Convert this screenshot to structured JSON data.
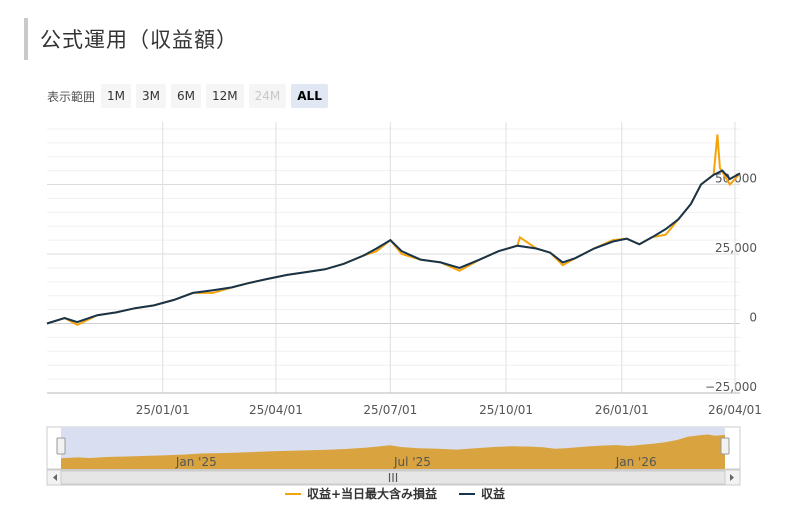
{
  "header": {
    "title": "公式運用（収益額）"
  },
  "range_selector": {
    "label": "表示範囲",
    "buttons": [
      {
        "label": "1M",
        "state": "normal"
      },
      {
        "label": "3M",
        "state": "normal"
      },
      {
        "label": "6M",
        "state": "normal"
      },
      {
        "label": "12M",
        "state": "normal"
      },
      {
        "label": "24M",
        "state": "disabled"
      },
      {
        "label": "ALL",
        "state": "active"
      }
    ]
  },
  "navigator": {
    "labels": [
      "Jan '25",
      "Jul '25",
      "Jan '26"
    ],
    "handle_glyph": "III"
  },
  "chart_data": {
    "type": "line",
    "y_ticks": [
      -25000,
      0,
      25000,
      50000
    ],
    "y_tick_labels": [
      "−25,000",
      "0",
      "25,000",
      "50,000"
    ],
    "x_tick_labels": [
      "25/01/01",
      "25/04/01",
      "25/07/01",
      "25/10/01",
      "26/01/01",
      "26/04/01"
    ],
    "x_range": [
      "2024-10-01",
      "2026-04-05"
    ],
    "y_range": [
      -25000,
      72500
    ],
    "grid": true,
    "legend_position": "bottom",
    "colors": {
      "income_plus_drawdown": "#f5a30a",
      "income": "#17344e",
      "navigator_fill": "#d9a33f",
      "navigator_bg": "#d9dff0"
    },
    "series": [
      {
        "name": "収益",
        "points": [
          [
            "2024-10-01",
            0
          ],
          [
            "2024-10-15",
            2000
          ],
          [
            "2024-10-25",
            500
          ],
          [
            "2024-11-10",
            3000
          ],
          [
            "2024-11-25",
            4000
          ],
          [
            "2024-12-10",
            5500
          ],
          [
            "2024-12-25",
            6500
          ],
          [
            "2025-01-10",
            8500
          ],
          [
            "2025-01-25",
            11000
          ],
          [
            "2025-02-10",
            12000
          ],
          [
            "2025-02-25",
            13000
          ],
          [
            "2025-03-10",
            14500
          ],
          [
            "2025-03-25",
            16000
          ],
          [
            "2025-04-10",
            17500
          ],
          [
            "2025-04-25",
            18500
          ],
          [
            "2025-05-10",
            19500
          ],
          [
            "2025-05-25",
            21500
          ],
          [
            "2025-06-10",
            24500
          ],
          [
            "2025-06-20",
            27000
          ],
          [
            "2025-07-01",
            30000
          ],
          [
            "2025-07-10",
            26000
          ],
          [
            "2025-07-25",
            23000
          ],
          [
            "2025-08-10",
            22000
          ],
          [
            "2025-08-25",
            20000
          ],
          [
            "2025-09-10",
            23000
          ],
          [
            "2025-09-25",
            26000
          ],
          [
            "2025-10-10",
            28000
          ],
          [
            "2025-10-25",
            27000
          ],
          [
            "2025-11-05",
            25500
          ],
          [
            "2025-11-15",
            22000
          ],
          [
            "2025-11-25",
            23500
          ],
          [
            "2025-12-10",
            27000
          ],
          [
            "2025-12-25",
            29500
          ],
          [
            "2026-01-05",
            30500
          ],
          [
            "2026-01-15",
            28500
          ],
          [
            "2026-01-25",
            31000
          ],
          [
            "2026-02-05",
            34000
          ],
          [
            "2026-02-15",
            37500
          ],
          [
            "2026-02-25",
            43000
          ],
          [
            "2026-03-05",
            50000
          ],
          [
            "2026-03-15",
            53500
          ],
          [
            "2026-03-22",
            55000
          ],
          [
            "2026-03-28",
            52000
          ],
          [
            "2026-04-05",
            54000
          ]
        ]
      },
      {
        "name": "収益+当日最大含み損益",
        "points": [
          [
            "2024-10-01",
            0
          ],
          [
            "2024-10-15",
            2000
          ],
          [
            "2024-10-25",
            -500
          ],
          [
            "2024-11-10",
            3000
          ],
          [
            "2024-11-25",
            4000
          ],
          [
            "2024-12-10",
            5500
          ],
          [
            "2024-12-25",
            6500
          ],
          [
            "2025-01-10",
            8500
          ],
          [
            "2025-01-25",
            11000
          ],
          [
            "2025-02-10",
            11000
          ],
          [
            "2025-02-25",
            13000
          ],
          [
            "2025-03-10",
            14500
          ],
          [
            "2025-03-25",
            16000
          ],
          [
            "2025-04-10",
            17500
          ],
          [
            "2025-04-25",
            18500
          ],
          [
            "2025-05-10",
            19500
          ],
          [
            "2025-05-25",
            21500
          ],
          [
            "2025-06-10",
            24500
          ],
          [
            "2025-06-20",
            26000
          ],
          [
            "2025-07-01",
            30000
          ],
          [
            "2025-07-10",
            25000
          ],
          [
            "2025-07-25",
            23000
          ],
          [
            "2025-08-10",
            22000
          ],
          [
            "2025-08-25",
            19000
          ],
          [
            "2025-09-10",
            23000
          ],
          [
            "2025-09-25",
            26000
          ],
          [
            "2025-10-10",
            28000
          ],
          [
            "2025-10-12",
            31000
          ],
          [
            "2025-10-25",
            27000
          ],
          [
            "2025-11-05",
            25500
          ],
          [
            "2025-11-15",
            21000
          ],
          [
            "2025-11-25",
            23500
          ],
          [
            "2025-12-10",
            27000
          ],
          [
            "2025-12-25",
            30000
          ],
          [
            "2026-01-05",
            30500
          ],
          [
            "2026-01-15",
            28500
          ],
          [
            "2026-01-25",
            31000
          ],
          [
            "2026-02-05",
            32000
          ],
          [
            "2026-02-15",
            37500
          ],
          [
            "2026-02-25",
            43000
          ],
          [
            "2026-03-05",
            50000
          ],
          [
            "2026-03-15",
            53500
          ],
          [
            "2026-03-18",
            68000
          ],
          [
            "2026-03-20",
            56000
          ],
          [
            "2026-03-28",
            50000
          ],
          [
            "2026-04-05",
            54000
          ]
        ]
      }
    ]
  }
}
